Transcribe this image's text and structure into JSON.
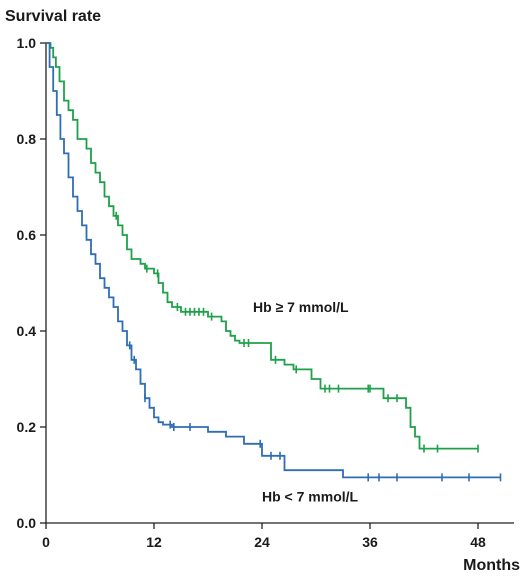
{
  "chart_data": {
    "type": "line",
    "subtype": "kaplan-meier",
    "ylabel": "Survival rate",
    "xlabel": "Months",
    "xlim": [
      0,
      52
    ],
    "ylim": [
      0,
      1
    ],
    "x_ticks": [
      0,
      12,
      24,
      36,
      48
    ],
    "y_ticks": [
      0.0,
      0.2,
      0.4,
      0.6,
      0.8,
      1.0
    ],
    "x_tick_labels": [
      "0",
      "12",
      "24",
      "36",
      "48"
    ],
    "y_tick_labels": [
      "0.0",
      "0.2",
      "0.4",
      "0.6",
      "0.8",
      "1.0"
    ],
    "grid": false,
    "series": [
      {
        "name": "Hb ≥ 7 mmol/L",
        "color": "#1ea14a",
        "steps": [
          [
            0,
            1.0
          ],
          [
            0.5,
            0.99
          ],
          [
            0.8,
            0.97
          ],
          [
            1.1,
            0.95
          ],
          [
            1.5,
            0.92
          ],
          [
            2,
            0.88
          ],
          [
            2.5,
            0.86
          ],
          [
            3,
            0.84
          ],
          [
            3.5,
            0.8
          ],
          [
            4.5,
            0.78
          ],
          [
            5,
            0.75
          ],
          [
            5.5,
            0.73
          ],
          [
            6,
            0.71
          ],
          [
            6.5,
            0.68
          ],
          [
            7,
            0.66
          ],
          [
            7.5,
            0.64
          ],
          [
            8,
            0.62
          ],
          [
            8.5,
            0.6
          ],
          [
            9,
            0.57
          ],
          [
            9.5,
            0.55
          ],
          [
            10.5,
            0.54
          ],
          [
            11,
            0.53
          ],
          [
            12,
            0.52
          ],
          [
            12.5,
            0.5
          ],
          [
            13,
            0.48
          ],
          [
            13.5,
            0.46
          ],
          [
            14,
            0.45
          ],
          [
            15,
            0.44
          ],
          [
            18,
            0.43
          ],
          [
            19.5,
            0.42
          ],
          [
            20,
            0.4
          ],
          [
            20.5,
            0.39
          ],
          [
            21,
            0.38
          ],
          [
            21.5,
            0.375
          ],
          [
            25,
            0.34
          ],
          [
            26.5,
            0.33
          ],
          [
            27.5,
            0.32
          ],
          [
            29.5,
            0.3
          ],
          [
            30.5,
            0.28
          ],
          [
            32,
            0.28
          ],
          [
            37.5,
            0.26
          ],
          [
            40,
            0.24
          ],
          [
            40.5,
            0.2
          ],
          [
            41,
            0.18
          ],
          [
            41.5,
            0.155
          ],
          [
            48,
            0.155
          ]
        ],
        "censor_x": [
          7.8,
          11.2,
          12.4,
          14.6,
          15.5,
          16,
          16.5,
          17,
          17.5,
          18.4,
          22,
          22.5,
          25.5,
          27.8,
          31,
          31.5,
          32.5,
          35.8,
          36,
          38,
          39,
          42,
          43.5,
          48
        ]
      },
      {
        "name": "Hb < 7 mmol/L",
        "color": "#2f6db5",
        "steps": [
          [
            0,
            1.0
          ],
          [
            0.4,
            0.95
          ],
          [
            0.8,
            0.9
          ],
          [
            1.2,
            0.85
          ],
          [
            1.6,
            0.8
          ],
          [
            2,
            0.77
          ],
          [
            2.5,
            0.72
          ],
          [
            3,
            0.68
          ],
          [
            3.5,
            0.65
          ],
          [
            4,
            0.62
          ],
          [
            4.5,
            0.59
          ],
          [
            5,
            0.56
          ],
          [
            5.5,
            0.54
          ],
          [
            6,
            0.51
          ],
          [
            6.5,
            0.49
          ],
          [
            7,
            0.47
          ],
          [
            7.5,
            0.45
          ],
          [
            8,
            0.42
          ],
          [
            8.5,
            0.4
          ],
          [
            9,
            0.37
          ],
          [
            9.5,
            0.34
          ],
          [
            10,
            0.32
          ],
          [
            10.5,
            0.29
          ],
          [
            11,
            0.26
          ],
          [
            11.5,
            0.24
          ],
          [
            12,
            0.22
          ],
          [
            12.5,
            0.21
          ],
          [
            13,
            0.205
          ],
          [
            14,
            0.2
          ],
          [
            18,
            0.19
          ],
          [
            20,
            0.18
          ],
          [
            22,
            0.165
          ],
          [
            24,
            0.14
          ],
          [
            26.5,
            0.11
          ],
          [
            33,
            0.095
          ],
          [
            50.5,
            0.095
          ]
        ],
        "censor_x": [
          9.3,
          9.8,
          11,
          13.8,
          14.2,
          16,
          23.8,
          25,
          26,
          35.8,
          37,
          39,
          44,
          47,
          50.5
        ]
      }
    ],
    "annotations": [
      {
        "text": "Hb ≥ 7 mmol/L",
        "x": 23,
        "y": 0.44
      },
      {
        "text": "Hb < 7 mmol/L",
        "x": 24,
        "y": 0.045
      }
    ]
  }
}
